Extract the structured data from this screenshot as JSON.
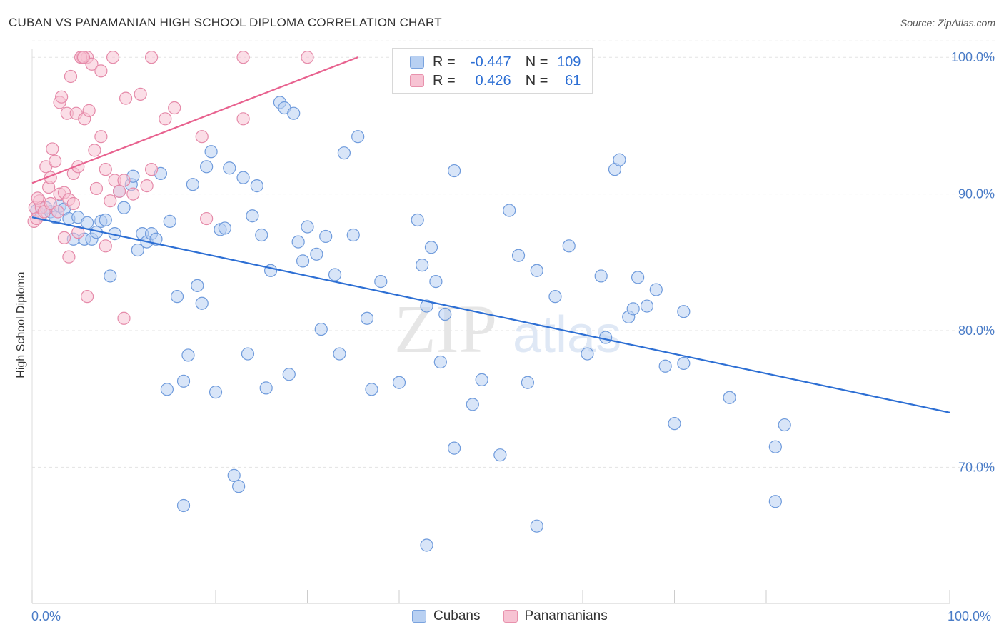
{
  "title": "CUBAN VS PANAMANIAN HIGH SCHOOL DIPLOMA CORRELATION CHART",
  "source": "Source: ZipAtlas.com",
  "watermark": {
    "zip": "ZIP",
    "atlas": "atlas"
  },
  "legend": {
    "rows": [
      {
        "r_label": "R =",
        "r_value": "-0.447",
        "n_label": "N =",
        "n_value": "109"
      },
      {
        "r_label": "R =",
        "r_value": "0.426",
        "n_label": "N =",
        "n_value": "61"
      }
    ],
    "bottom": [
      "Cubans",
      "Panamanians"
    ]
  },
  "colors": {
    "cubans": "#2d6fd4",
    "panamanians": "#e8628f",
    "cubans_fill": "#b8d0f2",
    "panamanians_fill": "#f7c3d3"
  },
  "chart_data": {
    "type": "scatter",
    "title": "CUBAN VS PANAMANIAN HIGH SCHOOL DIPLOMA CORRELATION CHART",
    "xlabel": "",
    "ylabel": "High School Diploma",
    "xlim": [
      0,
      100
    ],
    "ylim": [
      60,
      102
    ],
    "x_tick_labels": [
      "0.0%",
      "100.0%"
    ],
    "y_ticks": [
      70,
      80,
      90,
      100
    ],
    "y_tick_labels": [
      "70.0%",
      "80.0%",
      "90.0%",
      "100.0%"
    ],
    "grid": true,
    "legend_position": "top-center",
    "series": [
      {
        "name": "Cubans",
        "trend": {
          "x": [
            0,
            100
          ],
          "y": [
            88.3,
            74.0
          ]
        },
        "points": [
          [
            0.5,
            88.8
          ],
          [
            1,
            88.5
          ],
          [
            1.5,
            89.0
          ],
          [
            2,
            88.7
          ],
          [
            2.5,
            88.3
          ],
          [
            3,
            89.1
          ],
          [
            3.5,
            88.9
          ],
          [
            4,
            88.2
          ],
          [
            4.5,
            86.7
          ],
          [
            5,
            88.3
          ],
          [
            5.7,
            86.7
          ],
          [
            6,
            87.9
          ],
          [
            6.5,
            86.7
          ],
          [
            7,
            87.2
          ],
          [
            7.5,
            88.0
          ],
          [
            8,
            88.1
          ],
          [
            8.5,
            84.0
          ],
          [
            9,
            87.1
          ],
          [
            9.5,
            90.2
          ],
          [
            10,
            89.0
          ],
          [
            10.8,
            90.7
          ],
          [
            11,
            91.3
          ],
          [
            11.5,
            85.9
          ],
          [
            12,
            87.1
          ],
          [
            12.5,
            86.5
          ],
          [
            13,
            87.1
          ],
          [
            13.5,
            86.7
          ],
          [
            14,
            91.5
          ],
          [
            14.7,
            75.7
          ],
          [
            15,
            88.0
          ],
          [
            15.8,
            82.5
          ],
          [
            16.5,
            76.3
          ],
          [
            16.5,
            67.2
          ],
          [
            17,
            78.2
          ],
          [
            17.5,
            90.7
          ],
          [
            18,
            83.3
          ],
          [
            18.5,
            82.0
          ],
          [
            19,
            92.0
          ],
          [
            19.5,
            93.1
          ],
          [
            20,
            75.5
          ],
          [
            20.5,
            87.4
          ],
          [
            21,
            87.5
          ],
          [
            21.5,
            91.9
          ],
          [
            22,
            69.4
          ],
          [
            22.5,
            68.6
          ],
          [
            23,
            91.2
          ],
          [
            23.5,
            78.3
          ],
          [
            24,
            88.4
          ],
          [
            24.5,
            90.6
          ],
          [
            25,
            87.0
          ],
          [
            25.5,
            75.8
          ],
          [
            26,
            84.4
          ],
          [
            27,
            96.7
          ],
          [
            27.5,
            96.3
          ],
          [
            28,
            76.8
          ],
          [
            28.5,
            95.9
          ],
          [
            29,
            86.5
          ],
          [
            29.5,
            85.1
          ],
          [
            30,
            87.6
          ],
          [
            31,
            85.6
          ],
          [
            31.5,
            80.1
          ],
          [
            32,
            86.9
          ],
          [
            33,
            84.1
          ],
          [
            33.5,
            78.3
          ],
          [
            34,
            93.0
          ],
          [
            35,
            87.0
          ],
          [
            35.5,
            94.2
          ],
          [
            36.5,
            80.9
          ],
          [
            37,
            75.7
          ],
          [
            38,
            83.6
          ],
          [
            40,
            76.2
          ],
          [
            42,
            88.1
          ],
          [
            42.5,
            84.8
          ],
          [
            43,
            81.8
          ],
          [
            43.5,
            86.1
          ],
          [
            44,
            83.6
          ],
          [
            44.5,
            77.7
          ],
          [
            45,
            81.2
          ],
          [
            46,
            71.4
          ],
          [
            46,
            91.7
          ],
          [
            48,
            74.6
          ],
          [
            49,
            76.4
          ],
          [
            51,
            70.9
          ],
          [
            52,
            88.8
          ],
          [
            53,
            85.5
          ],
          [
            54,
            76.2
          ],
          [
            55,
            65.7
          ],
          [
            55,
            84.4
          ],
          [
            57,
            82.5
          ],
          [
            58.5,
            86.2
          ],
          [
            60.5,
            78.3
          ],
          [
            62,
            84.0
          ],
          [
            62.5,
            79.5
          ],
          [
            63.5,
            91.8
          ],
          [
            64,
            92.5
          ],
          [
            65,
            81.0
          ],
          [
            65.5,
            81.6
          ],
          [
            66,
            83.9
          ],
          [
            67,
            81.8
          ],
          [
            68,
            83.0
          ],
          [
            69,
            77.4
          ],
          [
            70,
            73.2
          ],
          [
            71,
            81.4
          ],
          [
            71,
            77.6
          ],
          [
            76,
            75.1
          ],
          [
            81,
            71.5
          ],
          [
            81,
            67.5
          ],
          [
            82,
            73.1
          ],
          [
            43,
            64.3
          ]
        ]
      },
      {
        "name": "Panamanians",
        "trend": {
          "x": [
            0,
            35.5
          ],
          "y": [
            90.8,
            100.0
          ]
        },
        "points": [
          [
            0.2,
            88.0
          ],
          [
            0.3,
            89.0
          ],
          [
            0.5,
            88.2
          ],
          [
            0.8,
            89.5
          ],
          [
            1,
            89.0
          ],
          [
            1.3,
            88.7
          ],
          [
            1.5,
            92.0
          ],
          [
            1.8,
            90.5
          ],
          [
            2,
            91.2
          ],
          [
            2,
            89.3
          ],
          [
            2.2,
            93.3
          ],
          [
            2.5,
            92.4
          ],
          [
            2.8,
            88.7
          ],
          [
            3,
            90.0
          ],
          [
            3,
            96.7
          ],
          [
            3.2,
            97.1
          ],
          [
            3.5,
            90.1
          ],
          [
            3.5,
            86.8
          ],
          [
            3.8,
            95.9
          ],
          [
            4,
            89.6
          ],
          [
            4,
            85.4
          ],
          [
            4.2,
            98.6
          ],
          [
            4.5,
            91.5
          ],
          [
            4.5,
            89.3
          ],
          [
            4.8,
            95.9
          ],
          [
            5,
            92.0
          ],
          [
            5,
            87.2
          ],
          [
            5.5,
            100.0
          ],
          [
            5.7,
            95.5
          ],
          [
            6,
            82.5
          ],
          [
            6,
            100.0
          ],
          [
            6.2,
            96.1
          ],
          [
            6.5,
            99.5
          ],
          [
            6.8,
            93.2
          ],
          [
            7,
            90.4
          ],
          [
            7.5,
            99.0
          ],
          [
            7.5,
            94.2
          ],
          [
            8,
            91.8
          ],
          [
            8,
            86.2
          ],
          [
            8.5,
            89.5
          ],
          [
            8.8,
            100.0
          ],
          [
            9,
            91.0
          ],
          [
            9.5,
            90.2
          ],
          [
            10,
            91.0
          ],
          [
            10,
            80.9
          ],
          [
            10.2,
            97.0
          ],
          [
            11,
            90.0
          ],
          [
            11.8,
            97.3
          ],
          [
            12.5,
            90.6
          ],
          [
            13,
            91.8
          ],
          [
            13,
            100.0
          ],
          [
            14.5,
            95.5
          ],
          [
            15.5,
            96.3
          ],
          [
            18.5,
            94.2
          ],
          [
            19,
            88.2
          ],
          [
            23,
            100.0
          ],
          [
            23,
            95.5
          ],
          [
            30,
            100.0
          ],
          [
            5.3,
            100.0
          ],
          [
            5.6,
            100.0
          ],
          [
            0.6,
            89.7
          ]
        ]
      }
    ]
  }
}
